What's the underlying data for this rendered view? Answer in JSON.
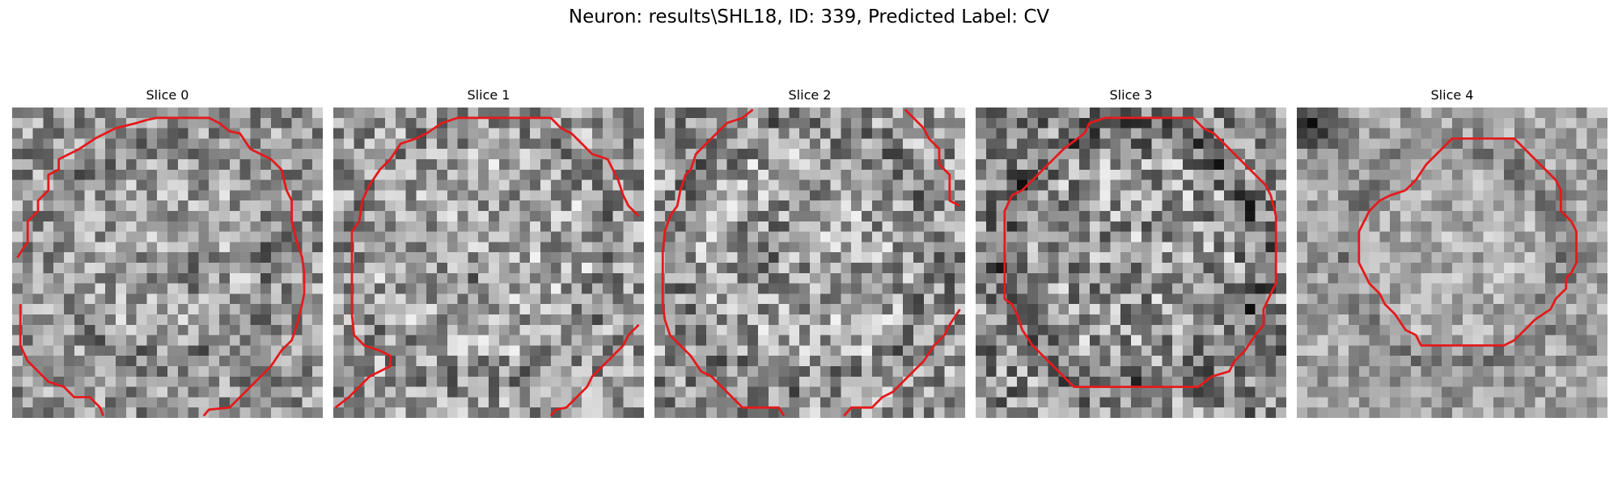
{
  "figure": {
    "title": "Neuron: results\\SHL18, ID: 339, Predicted Label: CV"
  },
  "panels": [
    {
      "title": "Slice 0",
      "contour_color": "#e41a1c",
      "image_kind": "noisy grayscale neuron crop with red segmentation contour"
    },
    {
      "title": "Slice 1",
      "contour_color": "#e41a1c",
      "image_kind": "noisy grayscale neuron crop with red segmentation contour"
    },
    {
      "title": "Slice 2",
      "contour_color": "#e41a1c",
      "image_kind": "noisy grayscale neuron crop with red segmentation contour"
    },
    {
      "title": "Slice 3",
      "contour_color": "#e41a1c",
      "image_kind": "noisy grayscale neuron crop with red segmentation contour"
    },
    {
      "title": "Slice 4",
      "contour_color": "#e41a1c",
      "image_kind": "noisy grayscale neuron crop with red segmentation contour"
    }
  ]
}
